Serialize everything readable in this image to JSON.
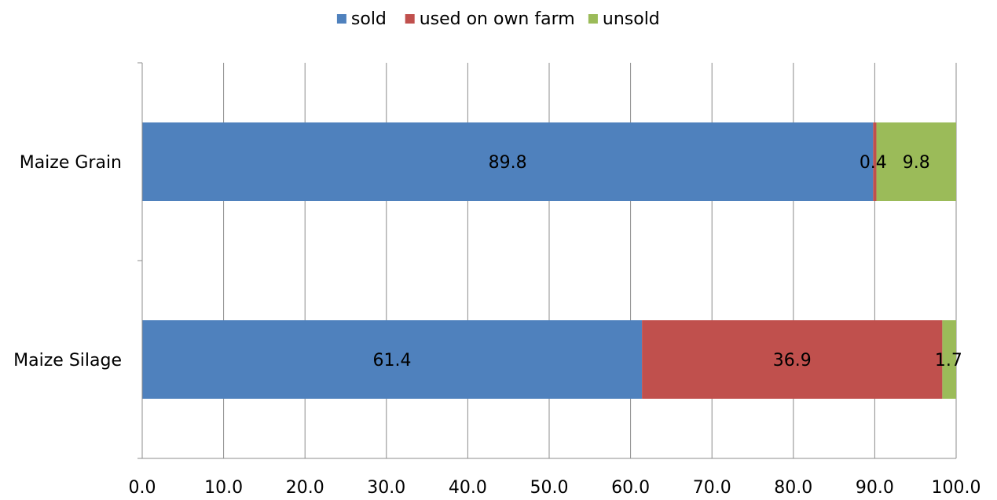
{
  "chart_data": {
    "type": "bar",
    "orientation": "horizontal",
    "stacked": true,
    "title": "",
    "xlabel": "",
    "ylabel": "",
    "categories": [
      "Maize Grain",
      "Maize Silage"
    ],
    "series": [
      {
        "name": "sold",
        "color": "#4F81BD",
        "values": [
          89.8,
          61.4
        ]
      },
      {
        "name": "used on own farm",
        "color": "#C0504D",
        "values": [
          0.4,
          36.9
        ]
      },
      {
        "name": "unsold",
        "color": "#9BBB59",
        "values": [
          9.8,
          1.7
        ]
      }
    ],
    "data_labels": [
      [
        "89.8",
        "0.4",
        "9.8"
      ],
      [
        "61.4",
        "36.9",
        "1.7"
      ]
    ],
    "xlim": [
      0,
      100
    ],
    "x_ticks": [
      0,
      10,
      20,
      30,
      40,
      50,
      60,
      70,
      80,
      90,
      100
    ],
    "x_tick_labels": [
      "0.0",
      "10.0",
      "20.0",
      "30.0",
      "40.0",
      "50.0",
      "60.0",
      "70.0",
      "80.0",
      "90.0",
      "100.0"
    ],
    "grid": true,
    "legend_position": "top"
  }
}
